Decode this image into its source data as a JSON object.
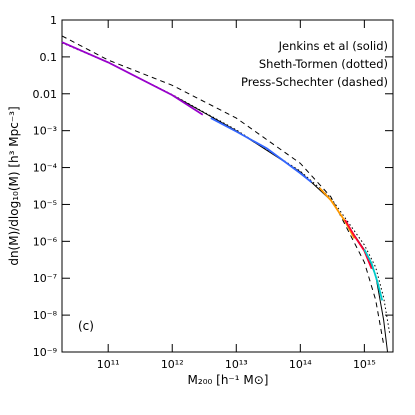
{
  "chart_data": {
    "type": "line",
    "x_label": "M₂₀₀ [h⁻¹ M⊙]",
    "y_label": "dn(M)/dlog₁₀(M) [h³ Mpc⁻³]",
    "annotation": "(c)",
    "log_x": true,
    "log_y": true,
    "xlim": [
      19000000000.0,
      2800000000000000.0
    ],
    "ylim": [
      1e-09,
      1
    ],
    "xticks": [
      {
        "value": 100000000000.0,
        "label": "10¹¹"
      },
      {
        "value": 1000000000000.0,
        "label": "10¹²"
      },
      {
        "value": 10000000000000.0,
        "label": "10¹³"
      },
      {
        "value": 100000000000000.0,
        "label": "10¹⁴"
      },
      {
        "value": 1000000000000000.0,
        "label": "10¹⁵"
      }
    ],
    "yticks": [
      {
        "value": 1e-09,
        "label": "10⁻⁹"
      },
      {
        "value": 1e-08,
        "label": "10⁻⁸"
      },
      {
        "value": 1e-07,
        "label": "10⁻⁷"
      },
      {
        "value": 1e-06,
        "label": "10⁻⁶"
      },
      {
        "value": 1e-05,
        "label": "10⁻⁵"
      },
      {
        "value": 0.0001,
        "label": "10⁻⁴"
      },
      {
        "value": 0.001,
        "label": "10⁻³"
      },
      0.01,
      0.1,
      1
    ],
    "series": [
      {
        "name": "Jenkins et al (solid)",
        "style": "solid",
        "color": "#000000",
        "x": [
          19000000000.0,
          100000000000.0,
          1000000000000.0,
          10000000000000.0,
          100000000000000.0,
          300000000000000.0,
          1000000000000000.0,
          1500000000000000.0,
          2000000000000000.0,
          2300000000000000.0
        ],
        "values": [
          0.25,
          0.072,
          0.0093,
          0.001,
          7.6e-05,
          1.3e-05,
          5.9e-07,
          1.2e-07,
          7.4e-09,
          1e-09
        ]
      },
      {
        "name": "Sheth-Tormen (dotted)",
        "style": "dotted",
        "color": "#000000",
        "x": [
          19000000000.0,
          100000000000.0,
          1000000000000.0,
          10000000000000.0,
          100000000000000.0,
          300000000000000.0,
          1000000000000000.0,
          1500000000000000.0,
          2000000000000000.0,
          2500000000000000.0
        ],
        "values": [
          0.24,
          0.07,
          0.0095,
          0.00105,
          8e-05,
          1.5e-05,
          8e-07,
          2e-07,
          3e-08,
          3e-09
        ]
      },
      {
        "name": "Press-Schechter (dashed)",
        "style": "dashed",
        "color": "#000000",
        "x": [
          19000000000.0,
          100000000000.0,
          1000000000000.0,
          10000000000000.0,
          100000000000000.0,
          300000000000000.0,
          1000000000000000.0,
          1500000000000000.0,
          2000000000000000.0
        ],
        "values": [
          0.37,
          0.082,
          0.017,
          0.0022,
          0.00013,
          1.6e-05,
          2.7e-07,
          2.6e-08,
          1.6e-09
        ]
      },
      {
        "style": "solid",
        "color": "#9900cc",
        "x": [
          19000000000.0,
          100000000000.0,
          1000000000000.0,
          3000000000000.0
        ],
        "values": [
          0.25,
          0.071,
          0.0092,
          0.0027
        ]
      },
      {
        "style": "solid",
        "color": "#3366ff",
        "x": [
          4000000000000.0,
          10000000000000.0,
          30000000000000.0,
          100000000000000.0,
          150000000000000.0
        ],
        "values": [
          0.0022,
          0.00095,
          0.00033,
          7e-05,
          4e-05
        ]
      },
      {
        "style": "solid",
        "color": "#ff9900",
        "x": [
          200000000000000.0,
          300000000000000.0,
          500000000000000.0,
          700000000000000.0
        ],
        "values": [
          2.8e-05,
          1.3e-05,
          3.5e-06,
          1.2e-06
        ]
      },
      {
        "style": "solid",
        "color": "#ff0033",
        "x": [
          500000000000000.0,
          700000000000000.0,
          1000000000000000.0,
          1300000000000000.0
        ],
        "values": [
          3.8e-06,
          1.4e-06,
          5.5e-07,
          1.8e-07
        ]
      },
      {
        "style": "solid",
        "color": "#00cccc",
        "x": [
          1000000000000000.0,
          1300000000000000.0,
          1600000000000000.0,
          1900000000000000.0
        ],
        "values": [
          6e-07,
          2.5e-07,
          8e-08,
          2.5e-08
        ]
      }
    ]
  }
}
